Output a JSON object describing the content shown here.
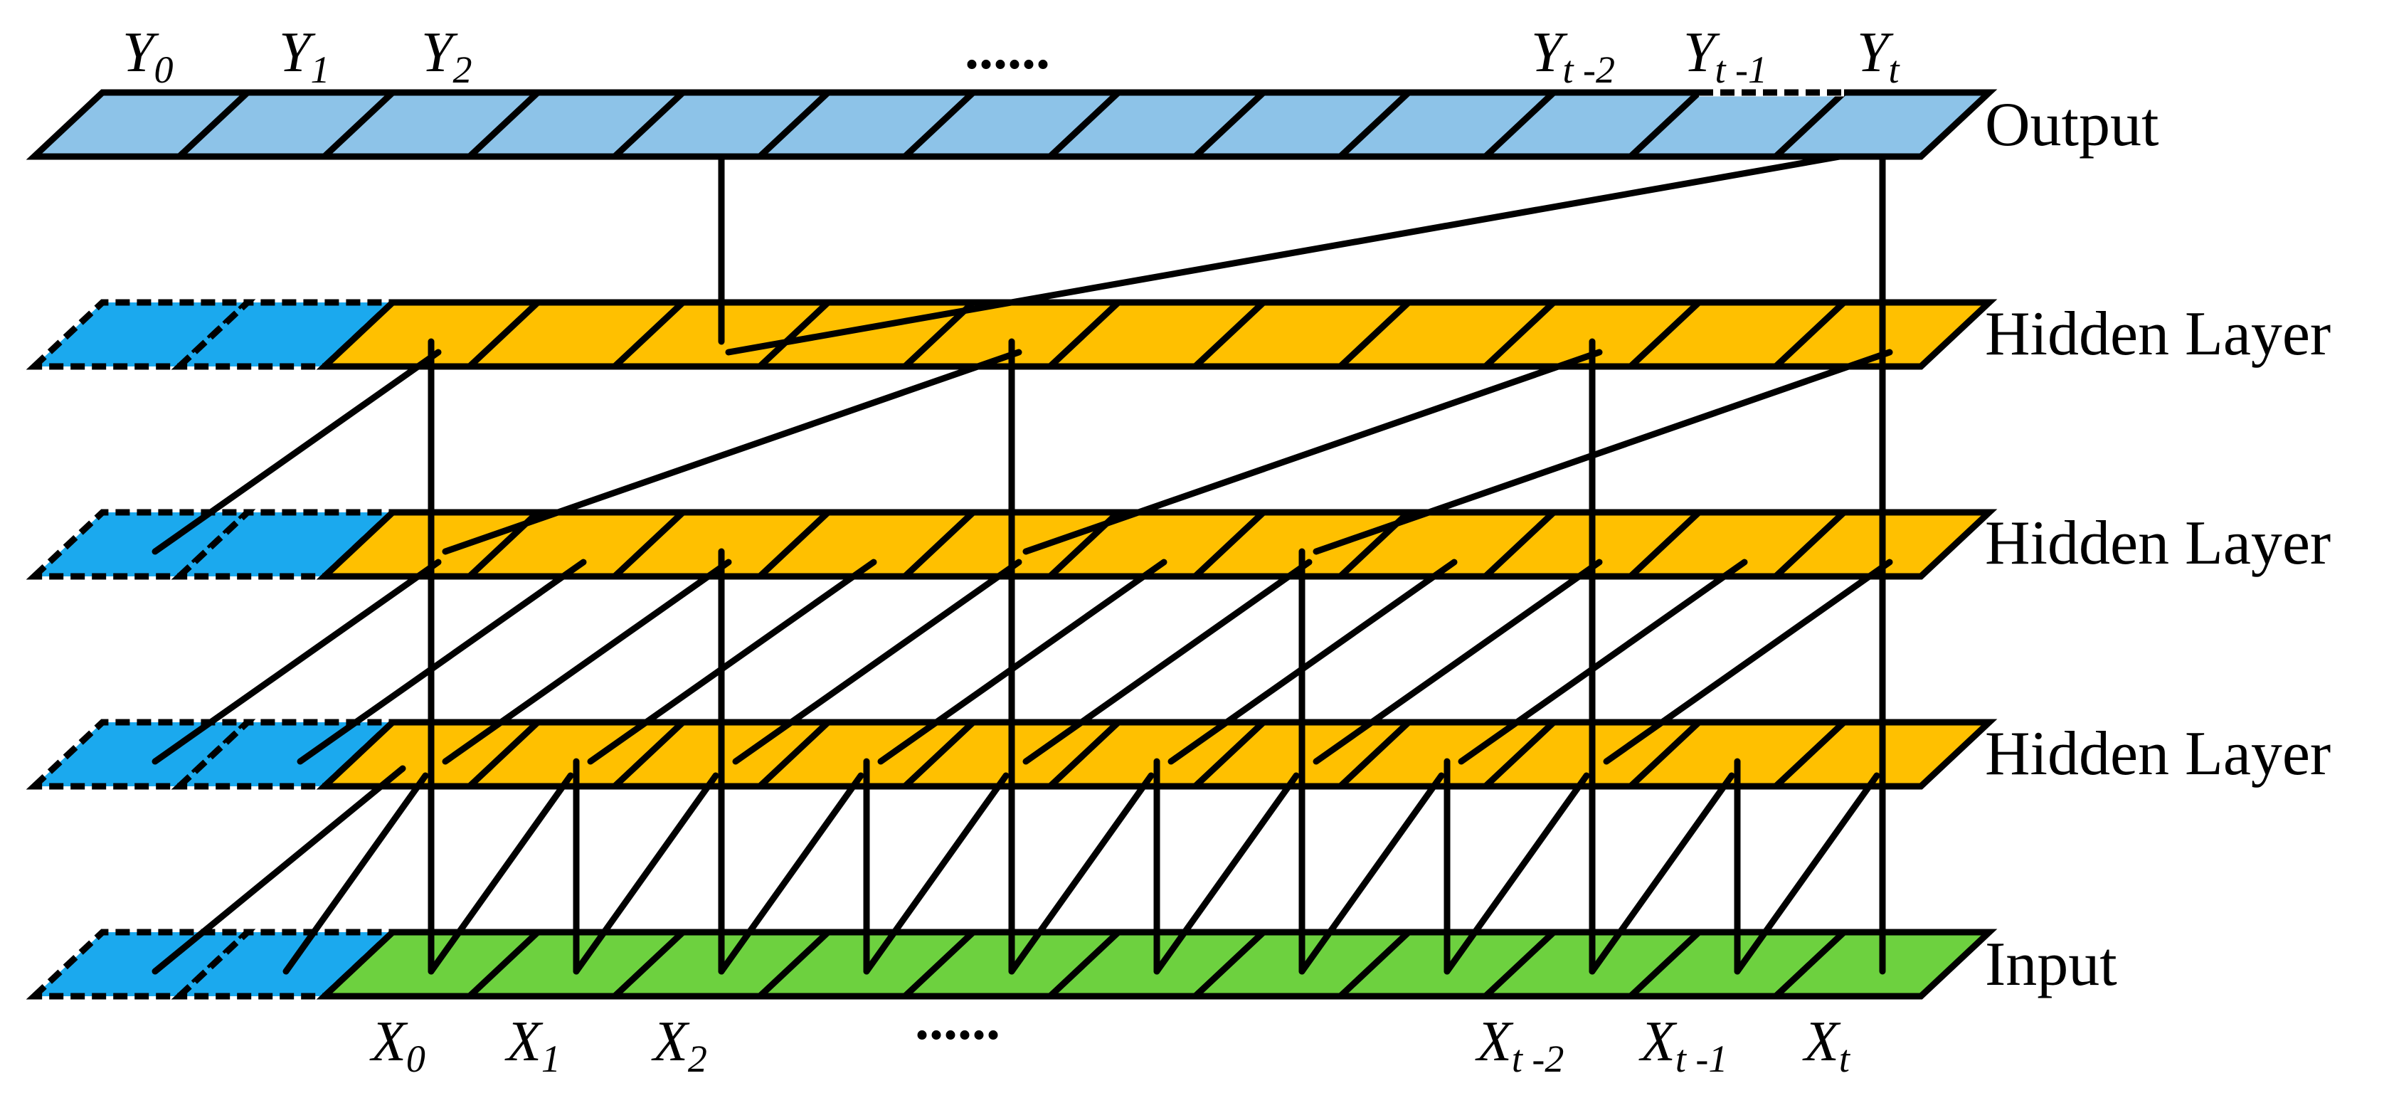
{
  "output_labels": [
    {
      "base": "Y",
      "sub": "0"
    },
    {
      "base": "Y",
      "sub": "1"
    },
    {
      "base": "Y",
      "sub": "2"
    },
    {
      "base": "Y",
      "sub": "t -2"
    },
    {
      "base": "Y",
      "sub": "t -1"
    },
    {
      "base": "Y",
      "sub": "t"
    }
  ],
  "input_labels": [
    {
      "base": "X",
      "sub": "0"
    },
    {
      "base": "X",
      "sub": "1"
    },
    {
      "base": "X",
      "sub": "2"
    },
    {
      "base": "X",
      "sub": "t -2"
    },
    {
      "base": "X",
      "sub": "t -1"
    },
    {
      "base": "X",
      "sub": "t"
    }
  ],
  "ellipsis": "......",
  "layer_labels": {
    "output": "Output",
    "hidden_top": "Hidden Layer",
    "hidden_mid": "Hidden Layer",
    "hidden_bottom": "Hidden Layer",
    "input": "Input"
  },
  "colors": {
    "output": "#8DC3E8",
    "hidden": "#FFC000",
    "input": "#6DD13F",
    "padding": "#1BA9EE",
    "stroke": "#000000"
  }
}
